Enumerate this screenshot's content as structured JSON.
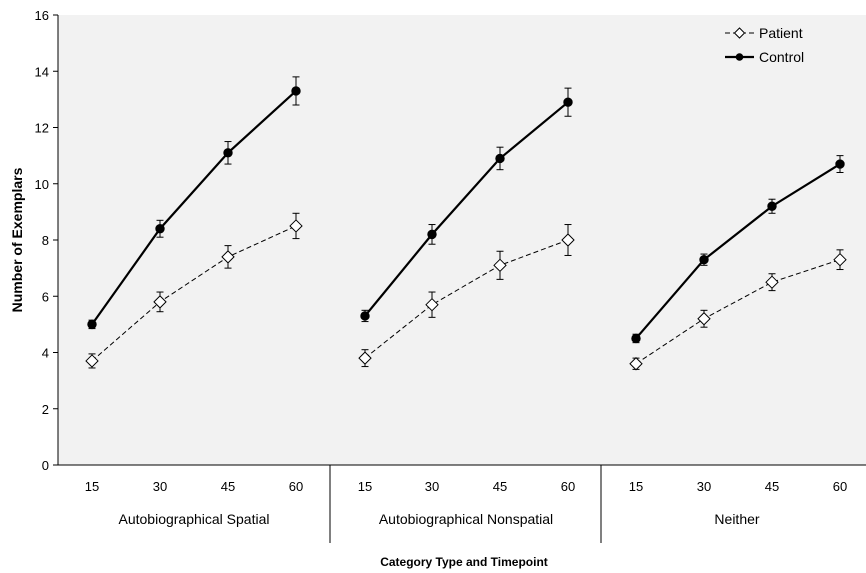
{
  "chart_data": {
    "type": "line",
    "ylabel": "Number of Exemplars",
    "xlabel": "Category Type and Timepoint",
    "ylim": [
      0,
      16
    ],
    "yticks": [
      0,
      2,
      4,
      6,
      8,
      10,
      12,
      14,
      16
    ],
    "timepoints": [
      "15",
      "30",
      "45",
      "60"
    ],
    "groups": [
      "Autobiographical Spatial",
      "Autobiographical Nonspatial",
      "Neither"
    ],
    "legend_position": "top-right",
    "grid": false,
    "plot_background": "#f2f2f2",
    "series": [
      {
        "name": "Patient",
        "style": "dashed",
        "marker": "open-diamond",
        "color": "#000000",
        "values": [
          [
            3.7,
            5.8,
            7.4,
            8.5
          ],
          [
            3.8,
            5.7,
            7.1,
            8.0
          ],
          [
            3.6,
            5.2,
            6.5,
            7.3
          ]
        ],
        "errors": [
          [
            0.25,
            0.35,
            0.4,
            0.45
          ],
          [
            0.3,
            0.45,
            0.5,
            0.55
          ],
          [
            0.2,
            0.3,
            0.3,
            0.35
          ]
        ]
      },
      {
        "name": "Control",
        "style": "solid",
        "marker": "filled-circle",
        "color": "#000000",
        "values": [
          [
            5.0,
            8.4,
            11.1,
            13.3
          ],
          [
            5.3,
            8.2,
            10.9,
            12.9
          ],
          [
            4.5,
            7.3,
            9.2,
            10.7
          ]
        ],
        "errors": [
          [
            0.15,
            0.3,
            0.4,
            0.5
          ],
          [
            0.2,
            0.35,
            0.4,
            0.5
          ],
          [
            0.15,
            0.2,
            0.25,
            0.3
          ]
        ]
      }
    ]
  }
}
